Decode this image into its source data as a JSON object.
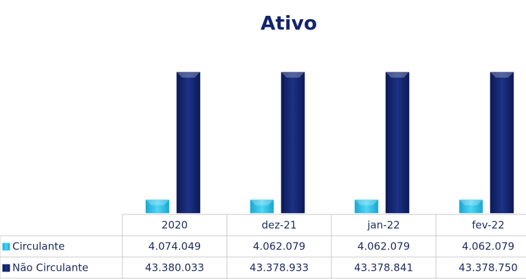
{
  "chart_data": {
    "type": "bar",
    "title": "Ativo",
    "categories": [
      "2020",
      "dez-21",
      "jan-22",
      "fev-22"
    ],
    "series": [
      {
        "name": "Circulante",
        "color": "#2ec4ea",
        "values": [
          4074049,
          4062079,
          4062079,
          4062079
        ],
        "value_labels": [
          "4.074.049",
          "4.062.079",
          "4.062.079",
          "4.062.079"
        ]
      },
      {
        "name": "Não Circulante",
        "color": "#13246e",
        "values": [
          43380033,
          43378933,
          43378841,
          43378750
        ],
        "value_labels": [
          "43.380.033",
          "43.378.933",
          "43.378.841",
          "43.378.750"
        ]
      }
    ]
  }
}
